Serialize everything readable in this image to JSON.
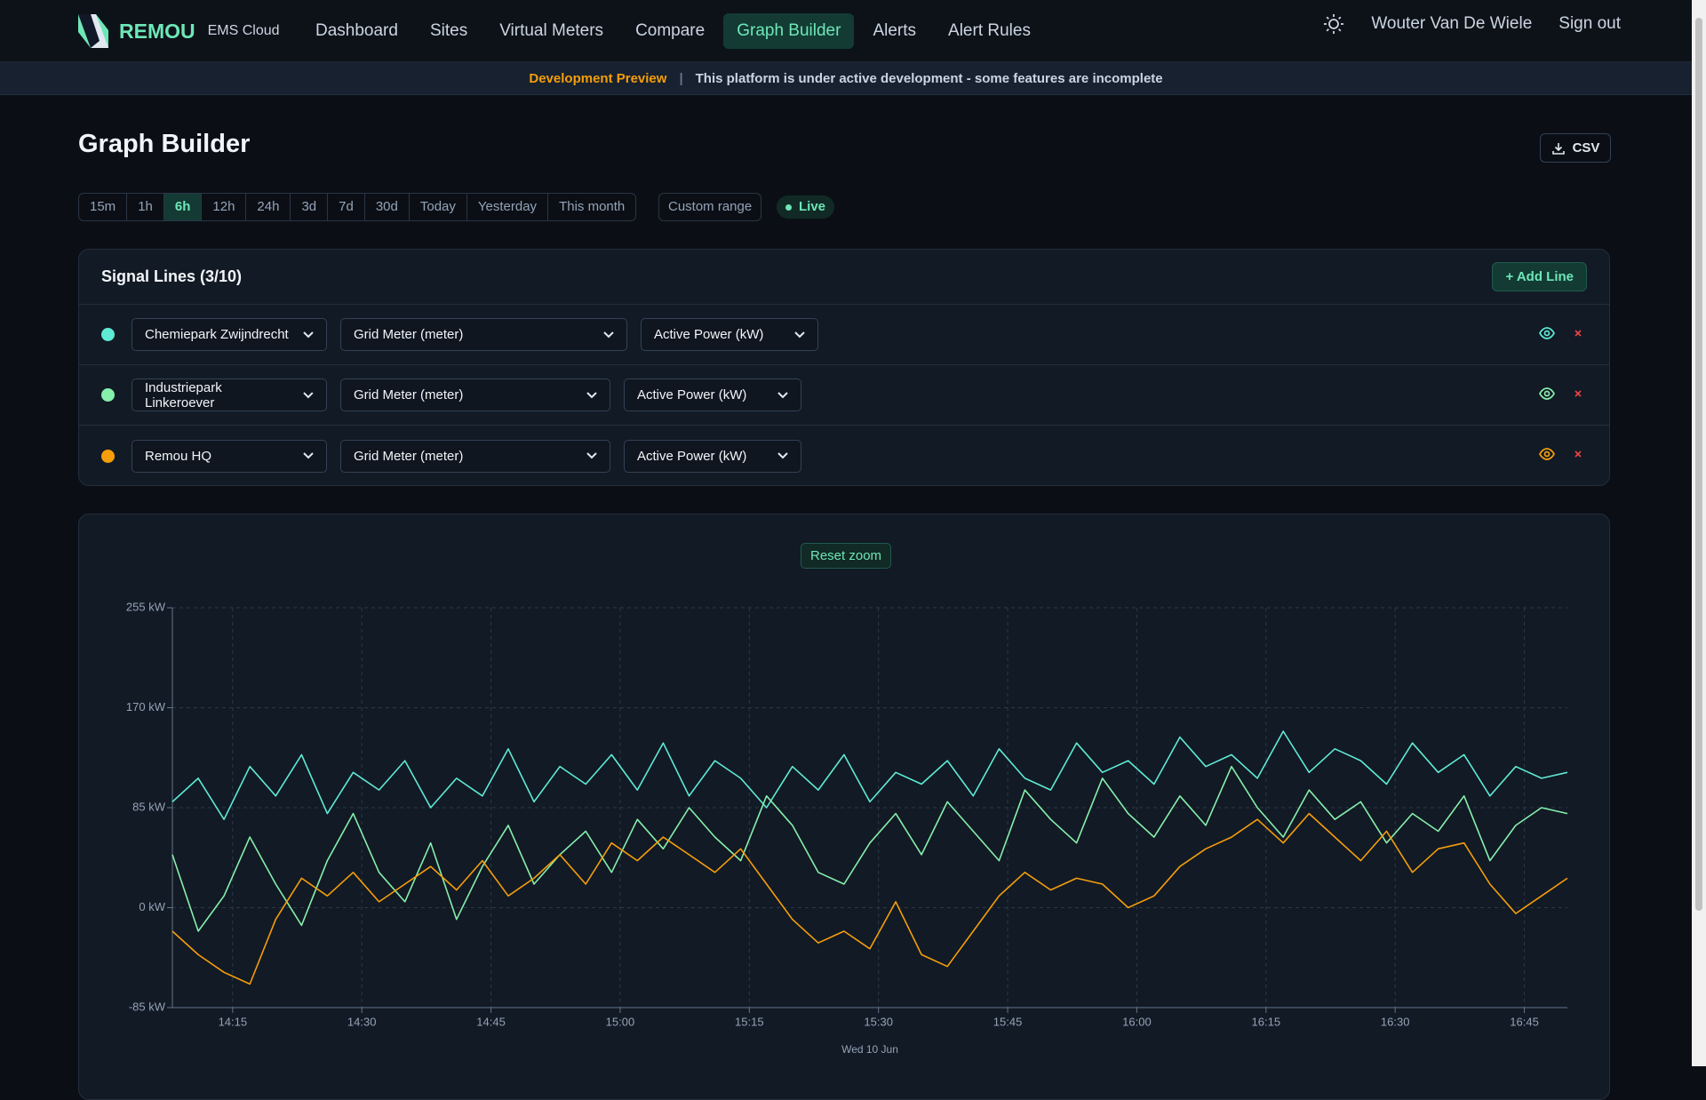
{
  "brand": {
    "name": "REMOU",
    "product": "EMS Cloud"
  },
  "nav": {
    "items": [
      {
        "label": "Dashboard",
        "active": false
      },
      {
        "label": "Sites",
        "active": false
      },
      {
        "label": "Virtual Meters",
        "active": false
      },
      {
        "label": "Compare",
        "active": false
      },
      {
        "label": "Graph Builder",
        "active": true
      },
      {
        "label": "Alerts",
        "active": false
      },
      {
        "label": "Alert Rules",
        "active": false
      }
    ]
  },
  "user": {
    "name": "Wouter Van De Wiele",
    "sign_out": "Sign out"
  },
  "banner": {
    "label": "Development Preview",
    "message": "This platform is under active development - some features are incomplete"
  },
  "page": {
    "title": "Graph Builder",
    "csv": "CSV"
  },
  "ranges": {
    "options": [
      {
        "label": "15m",
        "active": false
      },
      {
        "label": "1h",
        "active": false
      },
      {
        "label": "6h",
        "active": true
      },
      {
        "label": "12h",
        "active": false
      },
      {
        "label": "24h",
        "active": false
      },
      {
        "label": "3d",
        "active": false
      },
      {
        "label": "7d",
        "active": false
      },
      {
        "label": "30d",
        "active": false
      },
      {
        "label": "Today",
        "active": false
      },
      {
        "label": "Yesterday",
        "active": false
      },
      {
        "label": "This month",
        "active": false
      }
    ],
    "custom": "Custom range",
    "live": "Live"
  },
  "signal_lines": {
    "title": "Signal Lines (3/10)",
    "add": "+ Add Line",
    "rows": [
      {
        "site": "Chemiepark Zwijndrecht",
        "meter": "Grid Meter (meter)",
        "metric": "Active Power (kW)"
      },
      {
        "site": "Industriepark Linkeroever",
        "meter": "Grid Meter (meter)",
        "metric": "Active Power (kW)"
      },
      {
        "site": "Remou HQ",
        "meter": "Grid Meter (meter)",
        "metric": "Active Power (kW)"
      }
    ]
  },
  "chart_panel": {
    "reset_zoom": "Reset zoom"
  },
  "chart_data": {
    "type": "line",
    "xlabel": "Wed 10 Jun",
    "xlim": [
      "14:08",
      "16:50"
    ],
    "xticks": [
      "14:15",
      "14:30",
      "14:45",
      "15:00",
      "15:15",
      "15:30",
      "15:45",
      "16:00",
      "16:15",
      "16:30",
      "16:45"
    ],
    "ylim": [
      -85,
      255
    ],
    "yticks": [
      {
        "value": -85,
        "label": "-85 kW"
      },
      {
        "value": 0,
        "label": "0 kW"
      },
      {
        "value": 85,
        "label": "85 kW"
      },
      {
        "value": 170,
        "label": "170 kW"
      },
      {
        "value": 255,
        "label": "255 kW"
      }
    ],
    "grid": true,
    "x": [
      "14:08",
      "14:11",
      "14:14",
      "14:17",
      "14:20",
      "14:23",
      "14:26",
      "14:29",
      "14:32",
      "14:35",
      "14:38",
      "14:41",
      "14:44",
      "14:47",
      "14:50",
      "14:53",
      "14:56",
      "14:59",
      "15:02",
      "15:05",
      "15:08",
      "15:11",
      "15:14",
      "15:17",
      "15:20",
      "15:23",
      "15:26",
      "15:29",
      "15:32",
      "15:35",
      "15:38",
      "15:41",
      "15:44",
      "15:47",
      "15:50",
      "15:53",
      "15:56",
      "15:59",
      "16:02",
      "16:05",
      "16:08",
      "16:11",
      "16:14",
      "16:17",
      "16:20",
      "16:23",
      "16:26",
      "16:29",
      "16:32",
      "16:35",
      "16:38",
      "16:41",
      "16:44",
      "16:47",
      "16:50"
    ],
    "series": [
      {
        "color": "#5eead4",
        "values": [
          90,
          110,
          75,
          120,
          95,
          130,
          80,
          115,
          100,
          125,
          85,
          110,
          95,
          135,
          90,
          120,
          105,
          130,
          100,
          140,
          95,
          125,
          110,
          85,
          120,
          100,
          130,
          90,
          115,
          105,
          125,
          95,
          135,
          110,
          100,
          140,
          115,
          125,
          105,
          145,
          120,
          130,
          110,
          150,
          115,
          135,
          125,
          105,
          140,
          115,
          130,
          95,
          120,
          110,
          115
        ]
      },
      {
        "color": "#86efac",
        "values": [
          45,
          -20,
          10,
          60,
          20,
          -15,
          40,
          80,
          30,
          5,
          55,
          -10,
          35,
          70,
          20,
          45,
          65,
          30,
          75,
          50,
          85,
          60,
          40,
          95,
          70,
          30,
          20,
          55,
          80,
          45,
          90,
          65,
          40,
          100,
          75,
          55,
          110,
          80,
          60,
          95,
          70,
          120,
          85,
          60,
          100,
          75,
          90,
          55,
          80,
          65,
          95,
          40,
          70,
          85,
          80
        ]
      },
      {
        "color": "#f59e0b",
        "values": [
          -20,
          -40,
          -55,
          -65,
          -10,
          25,
          10,
          30,
          5,
          20,
          35,
          15,
          40,
          10,
          25,
          45,
          20,
          55,
          40,
          60,
          45,
          30,
          50,
          20,
          -10,
          -30,
          -20,
          -35,
          5,
          -40,
          -50,
          -20,
          10,
          30,
          15,
          25,
          20,
          0,
          10,
          35,
          50,
          60,
          75,
          55,
          80,
          60,
          40,
          65,
          30,
          50,
          55,
          20,
          -5,
          10,
          25
        ]
      }
    ]
  }
}
